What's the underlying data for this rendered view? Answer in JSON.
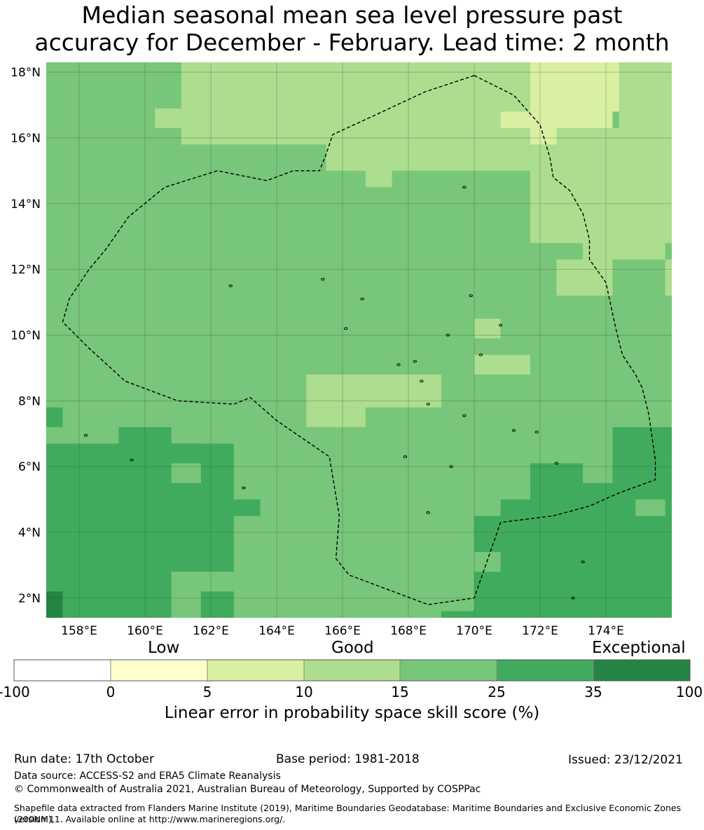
{
  "title": {
    "line1": "Median seasonal mean sea level pressure past",
    "line2": "accuracy for December - February. Lead time: 2 month"
  },
  "map": {
    "lat_range": [
      1.4,
      18.3
    ],
    "lon_range": [
      157.0,
      176.0
    ],
    "lat_ticks": [
      {
        "value": 2,
        "label": "2°N"
      },
      {
        "value": 4,
        "label": "4°N"
      },
      {
        "value": 6,
        "label": "6°N"
      },
      {
        "value": 8,
        "label": "8°N"
      },
      {
        "value": 10,
        "label": "10°N"
      },
      {
        "value": 12,
        "label": "12°N"
      },
      {
        "value": 14,
        "label": "14°N"
      },
      {
        "value": 16,
        "label": "16°N"
      },
      {
        "value": 18,
        "label": "18°N"
      }
    ],
    "lon_ticks": [
      {
        "value": 158,
        "label": "158°E"
      },
      {
        "value": 160,
        "label": "160°E"
      },
      {
        "value": 162,
        "label": "162°E"
      },
      {
        "value": 164,
        "label": "164°E"
      },
      {
        "value": 166,
        "label": "166°E"
      },
      {
        "value": 168,
        "label": "168°E"
      },
      {
        "value": 170,
        "label": "170°E"
      },
      {
        "value": 172,
        "label": "172°E"
      },
      {
        "value": 174,
        "label": "174°E"
      }
    ],
    "category_colors": {
      "c0": "#ffffcc",
      "c1": "#d9f0a3",
      "c2": "#addd8e",
      "c3": "#78c679",
      "c4": "#41ab5d",
      "c5": "#238443"
    },
    "base_category": "c3",
    "cells": [
      {
        "lon": [
          161.1,
          165.5
        ],
        "lat": [
          15.8,
          18.3
        ],
        "cat": "c2"
      },
      {
        "lon": [
          165.5,
          170.0
        ],
        "lat": [
          15.0,
          18.3
        ],
        "cat": "c2"
      },
      {
        "lon": [
          170.0,
          171.7
        ],
        "lat": [
          15.0,
          18.3
        ],
        "cat": "c2"
      },
      {
        "lon": [
          171.7,
          176.0
        ],
        "lat": [
          12.8,
          16.3
        ],
        "cat": "c2"
      },
      {
        "lon": [
          174.4,
          176.0
        ],
        "lat": [
          13.3,
          18.3
        ],
        "cat": "c2"
      },
      {
        "lon": [
          160.3,
          161.1
        ],
        "lat": [
          16.3,
          16.9
        ],
        "cat": "c2"
      },
      {
        "lon": [
          166.7,
          167.5
        ],
        "lat": [
          14.5,
          15.0
        ],
        "cat": "c2"
      },
      {
        "lon": [
          172.5,
          173.3
        ],
        "lat": [
          11.2,
          12.3
        ],
        "cat": "c2"
      },
      {
        "lon": [
          173.3,
          174.2
        ],
        "lat": [
          11.2,
          12.8
        ],
        "cat": "c2"
      },
      {
        "lon": [
          174.2,
          175.8
        ],
        "lat": [
          12.3,
          12.8
        ],
        "cat": "c2"
      },
      {
        "lon": [
          175.8,
          176.0
        ],
        "lat": [
          11.2,
          12.3
        ],
        "cat": "c2"
      },
      {
        "lon": [
          164.9,
          169.0
        ],
        "lat": [
          7.8,
          8.8
        ],
        "cat": "c2"
      },
      {
        "lon": [
          164.9,
          166.7
        ],
        "lat": [
          7.2,
          7.8
        ],
        "cat": "c2"
      },
      {
        "lon": [
          170.0,
          170.8
        ],
        "lat": [
          9.9,
          10.5
        ],
        "cat": "c2"
      },
      {
        "lon": [
          170.0,
          171.7
        ],
        "lat": [
          8.8,
          9.4
        ],
        "cat": "c2"
      },
      {
        "lon": [
          171.7,
          174.2
        ],
        "lat": [
          14.5,
          15.0
        ],
        "cat": "c2"
      },
      {
        "lon": [
          171.7,
          173.3
        ],
        "lat": [
          14.0,
          14.5
        ],
        "cat": "c2"
      },
      {
        "lon": [
          171.7,
          174.4
        ],
        "lat": [
          16.8,
          18.3
        ],
        "cat": "c1"
      },
      {
        "lon": [
          170.8,
          174.2
        ],
        "lat": [
          16.3,
          16.8
        ],
        "cat": "c1"
      },
      {
        "lon": [
          171.7,
          172.5
        ],
        "lat": [
          15.8,
          16.3
        ],
        "cat": "c1"
      },
      {
        "lon": [
          157.0,
          157.5
        ],
        "lat": [
          7.2,
          7.8
        ],
        "cat": "c4"
      },
      {
        "lon": [
          157.0,
          162.7
        ],
        "lat": [
          1.4,
          6.7
        ],
        "cat": "c4"
      },
      {
        "lon": [
          159.2,
          160.8
        ],
        "lat": [
          6.7,
          7.2
        ],
        "cat": "c4"
      },
      {
        "lon": [
          160.8,
          161.7
        ],
        "lat": [
          6.1,
          6.7
        ],
        "cat": "c4"
      },
      {
        "lon": [
          162.7,
          163.5
        ],
        "lat": [
          4.5,
          5.0
        ],
        "cat": "c4"
      },
      {
        "lon": [
          170.0,
          176.0
        ],
        "lat": [
          1.4,
          5.0
        ],
        "cat": "c4"
      },
      {
        "lon": [
          171.7,
          176.0
        ],
        "lat": [
          5.0,
          6.1
        ],
        "cat": "c4"
      },
      {
        "lon": [
          174.2,
          176.0
        ],
        "lat": [
          6.1,
          7.2
        ],
        "cat": "c4"
      },
      {
        "lon": [
          157.0,
          157.5
        ],
        "lat": [
          1.4,
          2.2
        ],
        "cat": "c5"
      },
      {
        "lon": [
          161.7,
          162.5
        ],
        "lat": [
          1.4,
          2.2
        ],
        "cat": "c4"
      },
      {
        "lon": [
          160.8,
          161.7
        ],
        "lat": [
          1.4,
          2.2
        ],
        "cat": "c3"
      },
      {
        "lon": [
          160.8,
          162.7
        ],
        "lat": [
          2.2,
          2.8
        ],
        "cat": "c3"
      },
      {
        "lon": [
          162.7,
          163.5
        ],
        "lat": [
          2.8,
          4.5
        ],
        "cat": "c3"
      },
      {
        "lon": [
          160.8,
          161.7
        ],
        "lat": [
          5.5,
          6.1
        ],
        "cat": "c3"
      },
      {
        "lon": [
          170.0,
          170.8
        ],
        "lat": [
          2.8,
          3.4
        ],
        "cat": "c3"
      },
      {
        "lon": [
          170.0,
          170.8
        ],
        "lat": [
          4.5,
          5.0
        ],
        "cat": "c3"
      },
      {
        "lon": [
          170.8,
          171.7
        ],
        "lat": [
          5.0,
          5.5
        ],
        "cat": "c3"
      },
      {
        "lon": [
          173.3,
          174.2
        ],
        "lat": [
          5.5,
          6.1
        ],
        "cat": "c3"
      },
      {
        "lon": [
          174.9,
          175.8
        ],
        "lat": [
          4.5,
          5.0
        ],
        "cat": "c3"
      },
      {
        "lon": [
          169.0,
          170.8
        ],
        "lat": [
          1.4,
          1.6
        ],
        "cat": "c4"
      }
    ],
    "eez_boundary": [
      [
        170.0,
        17.9
      ],
      [
        171.2,
        17.3
      ],
      [
        172.0,
        16.4
      ],
      [
        172.3,
        15.4
      ],
      [
        172.4,
        14.8
      ],
      [
        172.9,
        14.4
      ],
      [
        173.3,
        13.7
      ],
      [
        173.5,
        12.9
      ],
      [
        173.5,
        12.3
      ],
      [
        174.0,
        11.6
      ],
      [
        174.3,
        10.2
      ],
      [
        174.5,
        9.4
      ],
      [
        174.9,
        8.8
      ],
      [
        175.1,
        8.4
      ],
      [
        175.3,
        7.6
      ],
      [
        175.4,
        6.9
      ],
      [
        175.5,
        6.2
      ],
      [
        175.5,
        5.6
      ],
      [
        174.4,
        5.2
      ],
      [
        173.5,
        4.8
      ],
      [
        172.4,
        4.5
      ],
      [
        170.8,
        4.3
      ],
      [
        170.0,
        2.0
      ],
      [
        168.6,
        1.8
      ],
      [
        166.2,
        2.7
      ],
      [
        165.8,
        3.2
      ],
      [
        165.9,
        4.5
      ],
      [
        165.6,
        6.3
      ],
      [
        164.0,
        7.4
      ],
      [
        163.2,
        8.1
      ],
      [
        162.7,
        7.9
      ],
      [
        161.0,
        8.0
      ],
      [
        159.4,
        8.6
      ],
      [
        158.3,
        9.6
      ],
      [
        157.5,
        10.4
      ],
      [
        157.7,
        11.1
      ],
      [
        158.3,
        12.0
      ],
      [
        158.8,
        12.6
      ],
      [
        159.5,
        13.6
      ],
      [
        160.6,
        14.5
      ],
      [
        162.2,
        15.0
      ],
      [
        163.7,
        14.7
      ],
      [
        164.5,
        15.0
      ],
      [
        165.3,
        15.0
      ],
      [
        165.5,
        15.5
      ],
      [
        165.7,
        16.1
      ],
      [
        167.0,
        16.7
      ],
      [
        168.5,
        17.4
      ],
      [
        170.0,
        17.9
      ]
    ],
    "islands": [
      [
        158.2,
        6.95
      ],
      [
        159.6,
        6.2
      ],
      [
        163.0,
        5.35
      ],
      [
        166.6,
        11.1
      ],
      [
        168.2,
        9.2
      ],
      [
        168.6,
        7.9
      ],
      [
        168.4,
        8.6
      ],
      [
        169.7,
        7.55
      ],
      [
        171.2,
        7.1
      ],
      [
        171.9,
        7.05
      ],
      [
        172.5,
        6.1
      ],
      [
        173.3,
        3.1
      ],
      [
        173.0,
        2.0
      ],
      [
        169.3,
        6.0
      ],
      [
        168.6,
        4.6
      ],
      [
        169.2,
        10.0
      ],
      [
        167.7,
        9.1
      ],
      [
        170.8,
        10.3
      ],
      [
        169.7,
        14.5
      ],
      [
        166.1,
        10.2
      ],
      [
        165.4,
        11.7
      ],
      [
        162.6,
        11.5
      ],
      [
        169.9,
        11.2
      ],
      [
        167.9,
        6.3
      ],
      [
        170.2,
        9.4
      ]
    ]
  },
  "colorbar": {
    "category_labels": [
      "Low",
      "Good",
      "Exceptional"
    ],
    "colors": [
      "#ffffff",
      "#ffffcc",
      "#d9f0a3",
      "#addd8e",
      "#78c679",
      "#41ab5d",
      "#238443"
    ],
    "ticks": [
      "-100",
      "0",
      "5",
      "10",
      "15",
      "25",
      "35",
      "100"
    ],
    "label": "Linear error in probability space skill score (%)"
  },
  "footer": {
    "run_date": "Run date: 17th October",
    "base_period": "Base period: 1981-2018",
    "issued": "Issued: 23/12/2021",
    "data_source": "Data source: ACCESS-S2 and ERA5 Climate Reanalysis",
    "copyright": "© Commonwealth of Australia 2021, Australian Bureau of Meteorology, Supported by COSPPac",
    "shapefile_line1": "Shapefile data extracted from Flanders Marine Institute (2019), Maritime Boundaries Geodatabase: Maritime Boundaries and Exclusive Economic Zones (200NM),",
    "shapefile_line2": "version 11. Available online at http://www.marineregions.org/."
  }
}
